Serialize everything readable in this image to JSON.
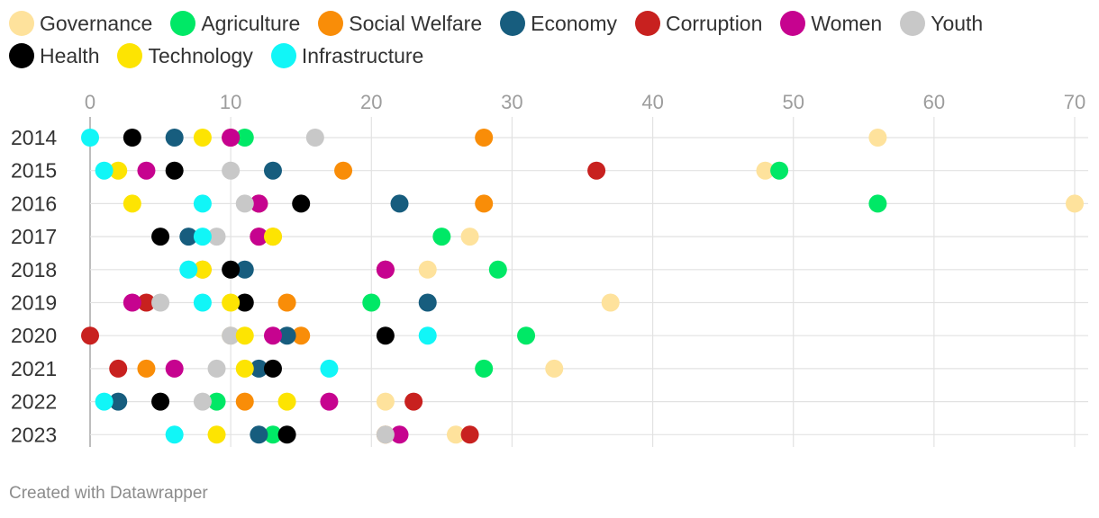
{
  "chart_data": {
    "type": "scatter",
    "title": "",
    "xlabel": "",
    "ylabel": "",
    "xlim": [
      0,
      70
    ],
    "x_ticks": [
      0,
      10,
      20,
      30,
      40,
      50,
      60,
      70
    ],
    "categories": [
      "2014",
      "2015",
      "2016",
      "2017",
      "2018",
      "2019",
      "2020",
      "2021",
      "2022",
      "2023"
    ],
    "grid": true,
    "legend_position": "top",
    "series": [
      {
        "name": "Governance",
        "color": "#fee29c",
        "values": [
          56,
          48,
          70,
          27,
          24,
          37,
          10,
          33,
          21,
          26
        ]
      },
      {
        "name": "Agriculture",
        "color": "#00e866",
        "values": [
          11,
          49,
          56,
          25,
          29,
          20,
          31,
          28,
          9,
          13
        ]
      },
      {
        "name": "Social Welfare",
        "color": "#f98d08",
        "values": [
          28,
          18,
          28,
          13,
          8,
          14,
          15,
          4,
          11,
          21
        ]
      },
      {
        "name": "Economy",
        "color": "#175d7e",
        "values": [
          6,
          13,
          22,
          7,
          11,
          24,
          14,
          12,
          2,
          12
        ]
      },
      {
        "name": "Corruption",
        "color": "#c8211f",
        "values": [
          10,
          36,
          12,
          12,
          21,
          4,
          0,
          2,
          23,
          27
        ]
      },
      {
        "name": "Women",
        "color": "#c6038f",
        "values": [
          10,
          4,
          12,
          12,
          21,
          3,
          13,
          6,
          17,
          22
        ]
      },
      {
        "name": "Youth",
        "color": "#c8c8c8",
        "values": [
          16,
          10,
          11,
          9,
          7,
          5,
          10,
          9,
          8,
          21
        ]
      },
      {
        "name": "Health",
        "color": "#000000",
        "values": [
          3,
          6,
          15,
          5,
          10,
          11,
          21,
          13,
          5,
          14
        ]
      },
      {
        "name": "Technology",
        "color": "#fde402",
        "values": [
          8,
          2,
          3,
          13,
          8,
          10,
          11,
          11,
          14,
          9
        ]
      },
      {
        "name": "Infrastructure",
        "color": "#11f6f7",
        "values": [
          0,
          1,
          8,
          8,
          7,
          8,
          24,
          17,
          1,
          6
        ]
      }
    ]
  },
  "footer": {
    "credit": "Created with Datawrapper"
  }
}
